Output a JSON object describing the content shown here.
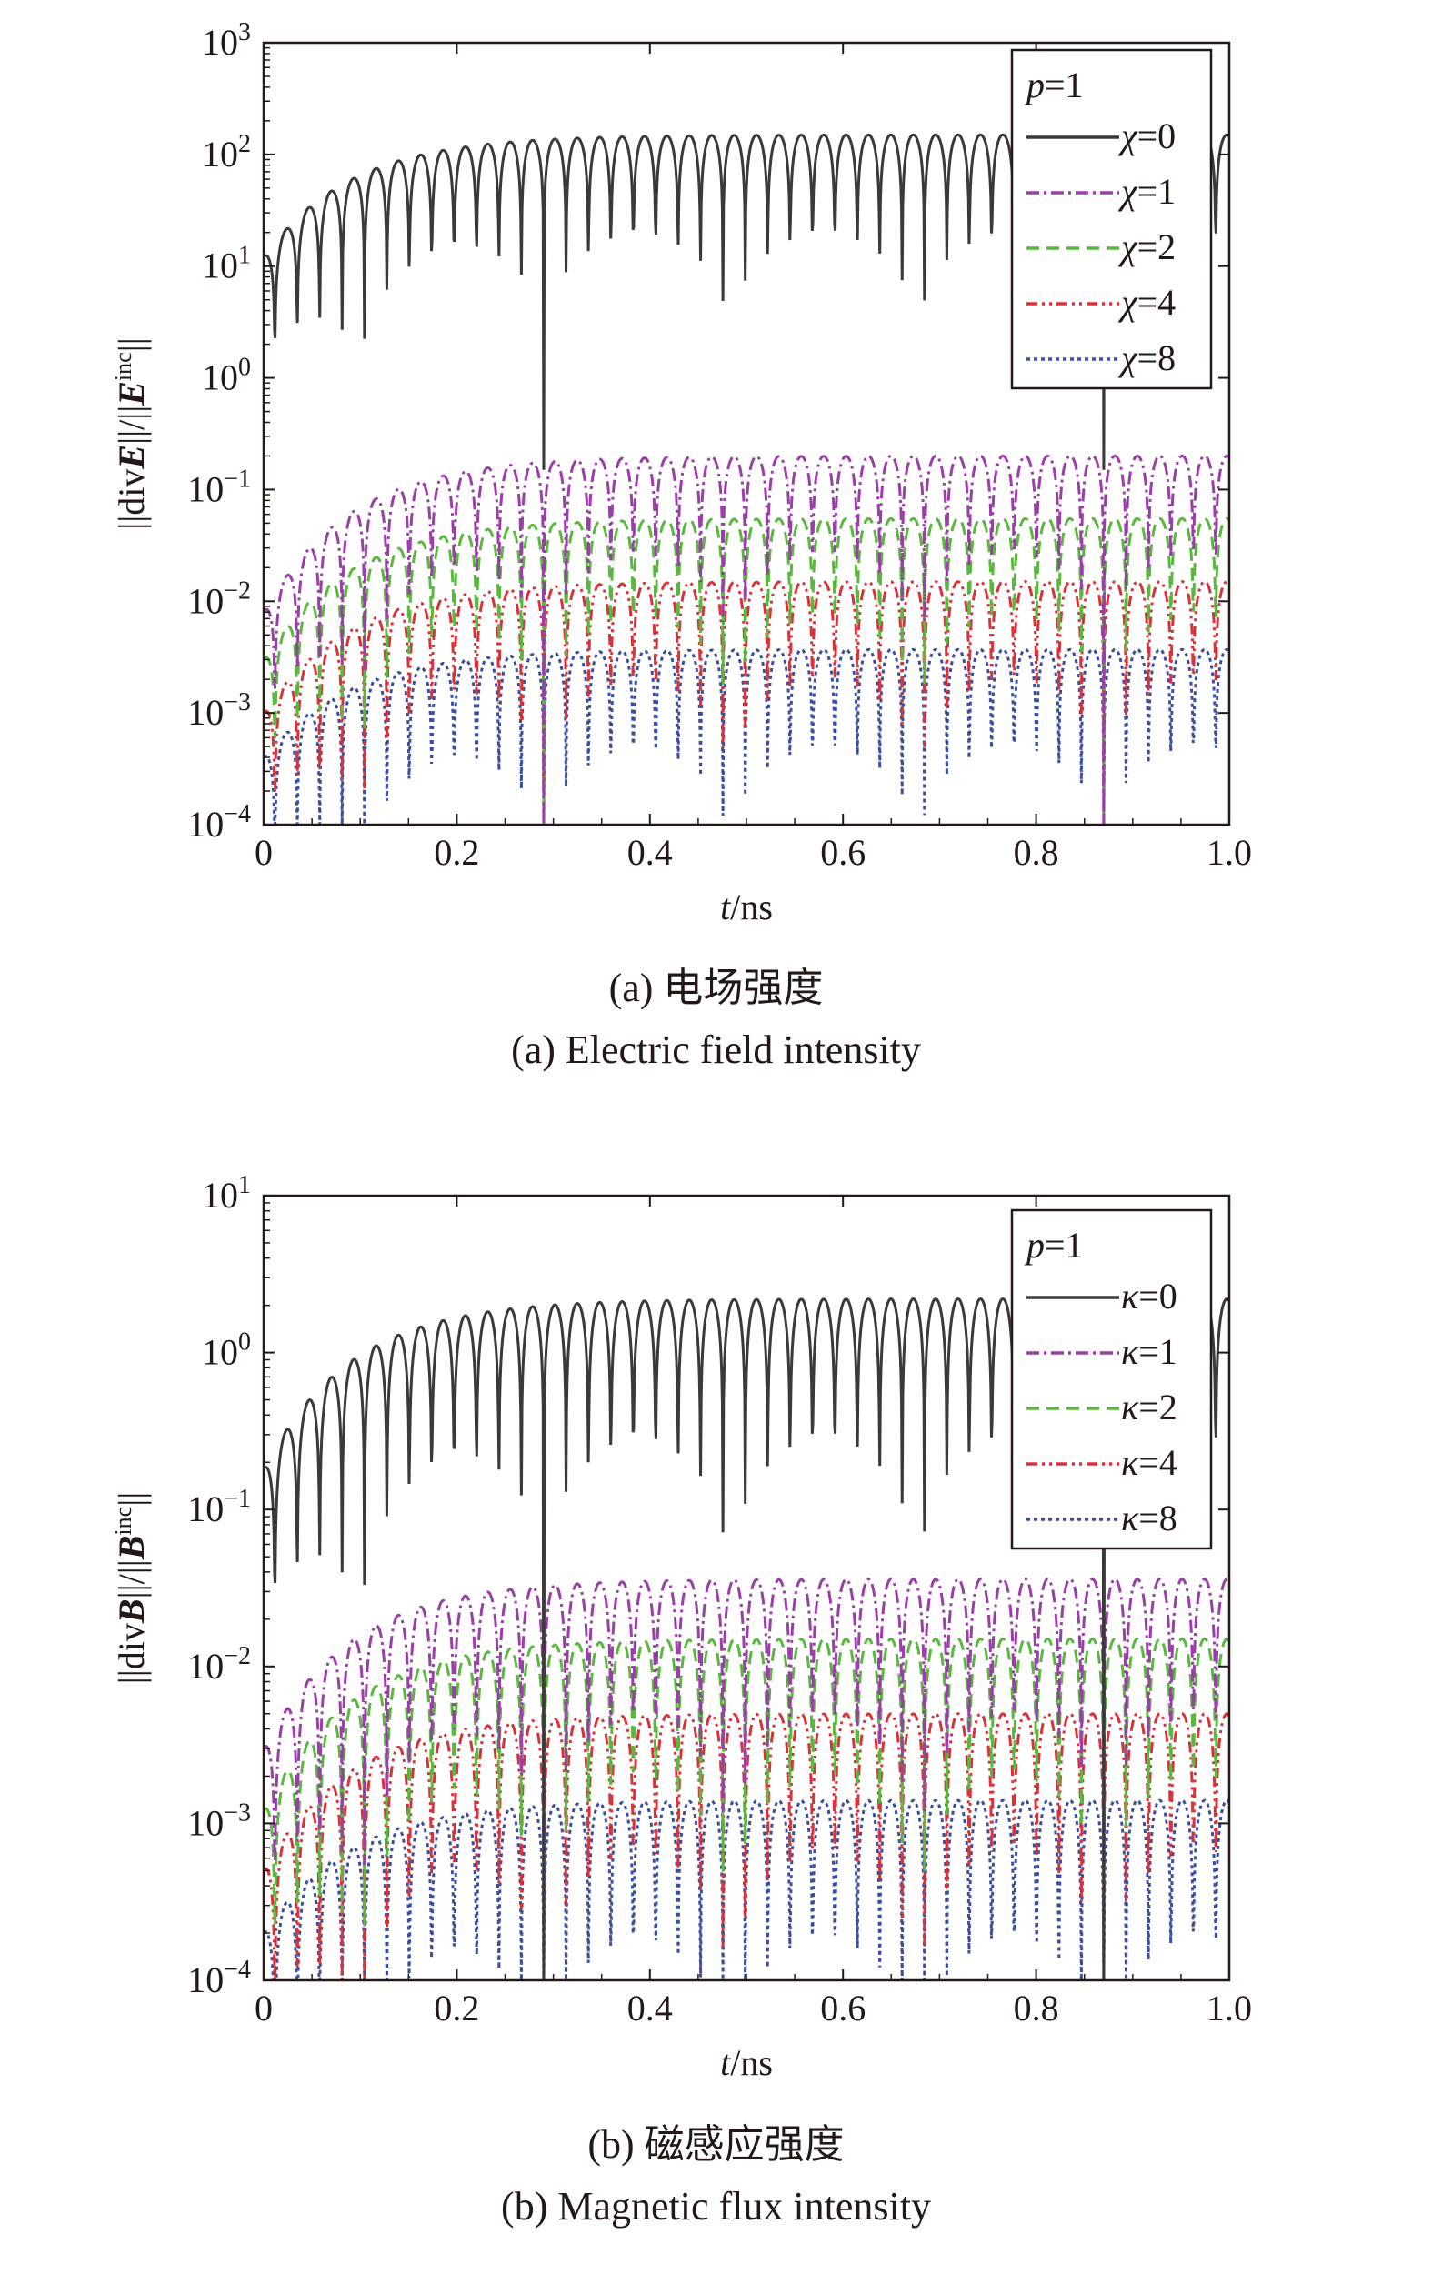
{
  "chart_data": [
    {
      "type": "line",
      "title": "",
      "xlabel": "t/ns",
      "ylabel": "||divE||/||E^inc||",
      "xlim": [
        0,
        1.0
      ],
      "ylim": [
        0.0001,
        1000
      ],
      "yscale": "log",
      "grid": false,
      "legend_position": "top-right",
      "legend_title": "p=1",
      "x_ticks": [
        "0",
        "0.2",
        "0.4",
        "0.6",
        "0.8",
        "1.0"
      ],
      "y_ticks": [
        "10^-4",
        "10^-3",
        "10^-2",
        "10^-1",
        "10^0",
        "10^1",
        "10^2",
        "10^3"
      ],
      "legend_var": "χ",
      "oscillation_period_ns": 0.0232,
      "series": [
        {
          "name": "χ=0",
          "value": 0,
          "color": "#3a3a3a",
          "dash": "solid",
          "plateau": 150,
          "start": 12,
          "trough": 0.15
        },
        {
          "name": "χ=1",
          "value": 1,
          "color": "#9b3fa8",
          "dash": "dashdot",
          "plateau": 0.2,
          "start": 0.008,
          "trough": 0.0001
        },
        {
          "name": "χ=2",
          "value": 2,
          "color": "#5bb83f",
          "dash": "dashed",
          "plateau": 0.055,
          "start": 0.003,
          "trough": 0.0001
        },
        {
          "name": "χ=4",
          "value": 4,
          "color": "#d8323a",
          "dash": "dashdotdot",
          "plateau": 0.015,
          "start": 0.001,
          "trough": 0.0001
        },
        {
          "name": "χ=8",
          "value": 8,
          "color": "#3b4fa0",
          "dash": "dotted",
          "plateau": 0.0037,
          "start": 0.0004,
          "trough": 0.0001
        }
      ],
      "caption_cn": "(a) 电场强度",
      "caption_en": "(a) Electric field intensity"
    },
    {
      "type": "line",
      "title": "",
      "xlabel": "t/ns",
      "ylabel": "||divB||/||B^inc||",
      "xlim": [
        0,
        1.0
      ],
      "ylim": [
        0.0001,
        10
      ],
      "yscale": "log",
      "grid": false,
      "legend_position": "top-right",
      "legend_title": "p=1",
      "x_ticks": [
        "0",
        "0.2",
        "0.4",
        "0.6",
        "0.8",
        "1.0"
      ],
      "y_ticks": [
        "10^-4",
        "10^-3",
        "10^-2",
        "10^-1",
        "10^0",
        "10^1"
      ],
      "legend_var": "κ",
      "oscillation_period_ns": 0.0232,
      "series": [
        {
          "name": "κ=0",
          "value": 0,
          "color": "#3a3a3a",
          "dash": "solid",
          "plateau": 2.2,
          "start": 0.18,
          "trough": 0.0001
        },
        {
          "name": "κ=1",
          "value": 1,
          "color": "#9b3fa8",
          "dash": "dashdot",
          "plateau": 0.036,
          "start": 0.003,
          "trough": 0.0001
        },
        {
          "name": "κ=2",
          "value": 2,
          "color": "#5bb83f",
          "dash": "dashed",
          "plateau": 0.015,
          "start": 0.0012,
          "trough": 0.0001
        },
        {
          "name": "κ=4",
          "value": 4,
          "color": "#d8323a",
          "dash": "dashdotdot",
          "plateau": 0.005,
          "start": 0.0005,
          "trough": 0.0001
        },
        {
          "name": "κ=8",
          "value": 8,
          "color": "#3b4fa0",
          "dash": "dotted",
          "plateau": 0.0014,
          "start": 0.0002,
          "trough": 0.0001
        }
      ],
      "caption_cn": "(b) 磁感应强度",
      "caption_en": "(b) Magnetic flux intensity"
    }
  ]
}
